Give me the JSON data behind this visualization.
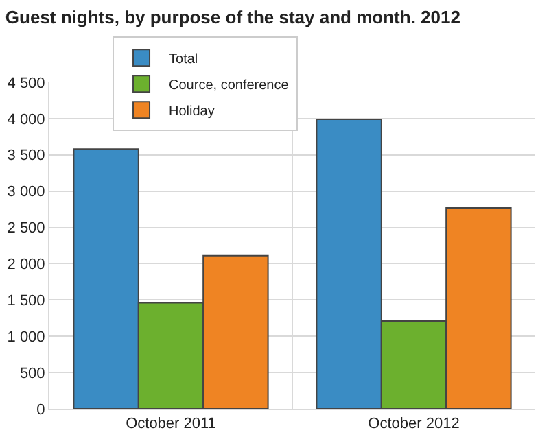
{
  "chart_data": {
    "type": "bar",
    "title": "Guest nights, by purpose of the stay and month. 2012",
    "categories": [
      "October 2011",
      "October 2012"
    ],
    "series": [
      {
        "name": "Total",
        "color": "#3a8cc4",
        "values": [
          3580,
          3990
        ]
      },
      {
        "name": "Cource, conference",
        "color": "#6cb02e",
        "values": [
          1460,
          1210
        ]
      },
      {
        "name": "Holiday",
        "color": "#ef8423",
        "values": [
          2110,
          2770
        ]
      }
    ],
    "ylim": [
      0,
      4500
    ],
    "yticks": [
      0,
      500,
      {
        "value": 1000,
        "label": "1 000"
      },
      {
        "value": 1500,
        "label": "1 500"
      },
      {
        "value": 2000,
        "label": "2 000"
      },
      {
        "value": 2500,
        "label": "2 500"
      },
      {
        "value": 3000,
        "label": "3 000"
      },
      {
        "value": 3500,
        "label": "3 500"
      },
      {
        "value": 4000,
        "label": "4 000"
      },
      {
        "value": 4500,
        "label": "4 500"
      }
    ],
    "grid": true,
    "legend": "top left"
  }
}
